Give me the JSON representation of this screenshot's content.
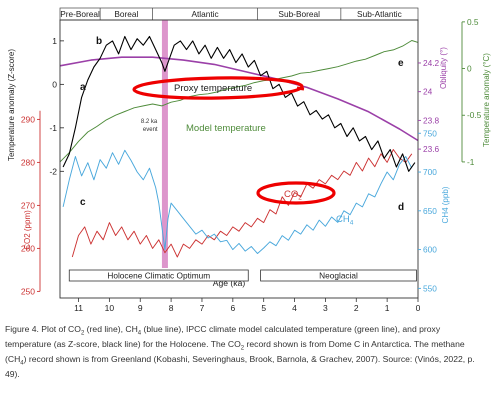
{
  "chart_data": {
    "type": "line",
    "x_axis": {
      "label": "Age (ka)",
      "range": [
        11.6,
        0
      ],
      "ticks": [
        11,
        10,
        9,
        8,
        7,
        6,
        5,
        4,
        3,
        2,
        1,
        0
      ]
    },
    "periods": [
      {
        "name": "Pre-Boreal",
        "start": 11.6,
        "end": 10.3
      },
      {
        "name": "Boreal",
        "start": 10.3,
        "end": 8.6
      },
      {
        "name": "Atlantic",
        "start": 8.6,
        "end": 5.2
      },
      {
        "name": "Sub-Boreal",
        "start": 5.2,
        "end": 2.5
      },
      {
        "name": "Sub-Atlantic",
        "start": 2.5,
        "end": 0
      }
    ],
    "climate_periods": [
      {
        "name": "Holocene Climatic Optimum",
        "start": 11.3,
        "end": 5.5
      },
      {
        "name": "Neoglacial",
        "start": 5.1,
        "end": 0.05
      }
    ],
    "event_8_2ka": {
      "age": 8.2,
      "label_line1": "8.2 ka",
      "label_line2": "event"
    },
    "panel_labels": [
      "a",
      "b",
      "c",
      "d",
      "e"
    ],
    "axes": {
      "zscore": {
        "label": "Temperature anomaly (Z-score)",
        "range": [
          -2.2,
          1.25
        ],
        "ticks": [
          1,
          0,
          -1,
          -2
        ]
      },
      "co2": {
        "label": "CO2 (ppm)",
        "range": [
          248,
          298
        ],
        "ticks": [
          290,
          280,
          270,
          260,
          250
        ]
      },
      "obliquity": {
        "label": "Obliquity (°)",
        "range": [
          23.35,
          24.36
        ],
        "ticks": [
          24.2,
          24,
          23.8,
          23.6
        ]
      },
      "temp_right": {
        "label": "Temperature anomaly (°C)",
        "range": [
          -1.14,
          0.52
        ],
        "ticks": [
          0.5,
          0,
          -0.5,
          -1.0
        ]
      },
      "ch4": {
        "label": "CH4 (ppb)",
        "range": [
          535,
          780
        ],
        "ticks": [
          750,
          700,
          650,
          600,
          550
        ]
      }
    },
    "series": [
      {
        "name": "Proxy temperature",
        "axis": "zscore",
        "color": "#000000",
        "points": [
          [
            11.5,
            -1.9
          ],
          [
            11.3,
            -1.6
          ],
          [
            11.1,
            -1.0
          ],
          [
            10.9,
            -0.3
          ],
          [
            10.7,
            0.1
          ],
          [
            10.5,
            0.4
          ],
          [
            10.3,
            0.6
          ],
          [
            10.1,
            0.9
          ],
          [
            9.9,
            1.0
          ],
          [
            9.7,
            0.7
          ],
          [
            9.5,
            1.1
          ],
          [
            9.3,
            0.8
          ],
          [
            9.1,
            1.05
          ],
          [
            8.9,
            0.9
          ],
          [
            8.7,
            1.1
          ],
          [
            8.5,
            0.8
          ],
          [
            8.3,
            0.5
          ],
          [
            8.2,
            0.3
          ],
          [
            8.1,
            0.5
          ],
          [
            7.9,
            0.9
          ],
          [
            7.7,
            1.0
          ],
          [
            7.5,
            0.8
          ],
          [
            7.3,
            1.0
          ],
          [
            7.1,
            0.7
          ],
          [
            6.9,
            0.9
          ],
          [
            6.7,
            0.6
          ],
          [
            6.5,
            0.85
          ],
          [
            6.3,
            0.6
          ],
          [
            6.1,
            0.8
          ],
          [
            5.9,
            0.5
          ],
          [
            5.7,
            0.7
          ],
          [
            5.5,
            0.4
          ],
          [
            5.3,
            0.55
          ],
          [
            5.1,
            0.2
          ],
          [
            4.9,
            0.3
          ],
          [
            4.7,
            -0.1
          ],
          [
            4.5,
            0.0
          ],
          [
            4.3,
            -0.3
          ],
          [
            4.1,
            -0.2
          ],
          [
            3.9,
            -0.5
          ],
          [
            3.7,
            -0.4
          ],
          [
            3.5,
            -0.7
          ],
          [
            3.3,
            -0.6
          ],
          [
            3.1,
            -0.8
          ],
          [
            2.9,
            -0.7
          ],
          [
            2.7,
            -1.0
          ],
          [
            2.5,
            -0.9
          ],
          [
            2.3,
            -1.2
          ],
          [
            2.1,
            -1.0
          ],
          [
            1.9,
            -1.3
          ],
          [
            1.7,
            -1.2
          ],
          [
            1.5,
            -1.5
          ],
          [
            1.3,
            -1.3
          ],
          [
            1.1,
            -1.7
          ],
          [
            0.9,
            -1.5
          ],
          [
            0.7,
            -1.9
          ],
          [
            0.5,
            -1.6
          ],
          [
            0.3,
            -2.0
          ],
          [
            0.1,
            -1.8
          ]
        ]
      },
      {
        "name": "Model temperature",
        "axis": "temp_right",
        "color": "#4e8b3a",
        "points": [
          [
            11.6,
            -1.0
          ],
          [
            11.3,
            -0.9
          ],
          [
            11.0,
            -0.78
          ],
          [
            10.7,
            -0.68
          ],
          [
            10.4,
            -0.62
          ],
          [
            10.1,
            -0.55
          ],
          [
            9.8,
            -0.5
          ],
          [
            9.5,
            -0.46
          ],
          [
            9.2,
            -0.42
          ],
          [
            8.9,
            -0.4
          ],
          [
            8.6,
            -0.38
          ],
          [
            8.3,
            -0.4
          ],
          [
            8.0,
            -0.36
          ],
          [
            7.7,
            -0.34
          ],
          [
            7.4,
            -0.3
          ],
          [
            7.1,
            -0.28
          ],
          [
            6.8,
            -0.27
          ],
          [
            6.5,
            -0.25
          ],
          [
            6.2,
            -0.22
          ],
          [
            5.9,
            -0.2
          ],
          [
            5.6,
            -0.18
          ],
          [
            5.3,
            -0.15
          ],
          [
            5.0,
            -0.13
          ],
          [
            4.7,
            -0.12
          ],
          [
            4.4,
            -0.1
          ],
          [
            4.1,
            -0.08
          ],
          [
            3.8,
            -0.05
          ],
          [
            3.5,
            -0.04
          ],
          [
            3.2,
            -0.02
          ],
          [
            2.9,
            0.0
          ],
          [
            2.6,
            0.02
          ],
          [
            2.3,
            0.05
          ],
          [
            2.0,
            0.08
          ],
          [
            1.7,
            0.1
          ],
          [
            1.4,
            0.14
          ],
          [
            1.1,
            0.18
          ],
          [
            0.8,
            0.2
          ],
          [
            0.5,
            0.24
          ],
          [
            0.2,
            0.3
          ],
          [
            0.0,
            0.28
          ]
        ]
      },
      {
        "name": "Obliquity",
        "axis": "obliquity",
        "color": "#9b40a8",
        "points": [
          [
            11.6,
            24.18
          ],
          [
            10.6,
            24.22
          ],
          [
            9.6,
            24.24
          ],
          [
            8.6,
            24.24
          ],
          [
            7.6,
            24.22
          ],
          [
            6.6,
            24.19
          ],
          [
            5.6,
            24.14
          ],
          [
            4.6,
            24.09
          ],
          [
            3.6,
            24.03
          ],
          [
            2.6,
            23.95
          ],
          [
            1.6,
            23.86
          ],
          [
            0.6,
            23.74
          ],
          [
            0.0,
            23.66
          ]
        ]
      },
      {
        "name": "CO2",
        "axis": "co2",
        "color": "#cc3333",
        "points": [
          [
            11.2,
            258
          ],
          [
            11.0,
            263
          ],
          [
            10.8,
            265
          ],
          [
            10.6,
            261
          ],
          [
            10.4,
            264
          ],
          [
            10.2,
            262
          ],
          [
            10.0,
            266
          ],
          [
            9.8,
            263
          ],
          [
            9.6,
            265
          ],
          [
            9.4,
            262
          ],
          [
            9.2,
            264
          ],
          [
            9.0,
            261
          ],
          [
            8.8,
            263
          ],
          [
            8.6,
            260
          ],
          [
            8.4,
            262
          ],
          [
            8.2,
            259
          ],
          [
            8.0,
            261
          ],
          [
            7.8,
            258
          ],
          [
            7.6,
            261
          ],
          [
            7.4,
            260
          ],
          [
            7.2,
            262
          ],
          [
            7.0,
            261
          ],
          [
            6.8,
            263
          ],
          [
            6.6,
            262
          ],
          [
            6.4,
            264
          ],
          [
            6.2,
            263
          ],
          [
            6.0,
            265
          ],
          [
            5.8,
            264
          ],
          [
            5.6,
            266
          ],
          [
            5.4,
            265
          ],
          [
            5.2,
            267
          ],
          [
            5.0,
            266
          ],
          [
            4.8,
            269
          ],
          [
            4.6,
            268
          ],
          [
            4.4,
            272
          ],
          [
            4.2,
            270
          ],
          [
            4.0,
            273
          ],
          [
            3.8,
            272
          ],
          [
            3.6,
            275
          ],
          [
            3.4,
            274
          ],
          [
            3.2,
            276
          ],
          [
            3.0,
            275
          ],
          [
            2.8,
            277
          ],
          [
            2.6,
            276
          ],
          [
            2.4,
            278
          ],
          [
            2.2,
            277
          ],
          [
            2.0,
            280
          ],
          [
            1.8,
            278
          ],
          [
            1.6,
            281
          ],
          [
            1.4,
            279
          ],
          [
            1.2,
            282
          ],
          [
            1.0,
            280
          ],
          [
            0.8,
            283
          ],
          [
            0.6,
            281
          ],
          [
            0.4,
            280
          ],
          [
            0.2,
            282
          ]
        ]
      },
      {
        "name": "CH4",
        "axis": "ch4",
        "color": "#4aa8dc",
        "points": [
          [
            11.5,
            655
          ],
          [
            11.3,
            690
          ],
          [
            11.1,
            720
          ],
          [
            10.9,
            695
          ],
          [
            10.7,
            712
          ],
          [
            10.5,
            690
          ],
          [
            10.3,
            716
          ],
          [
            10.1,
            705
          ],
          [
            9.9,
            725
          ],
          [
            9.7,
            710
          ],
          [
            9.5,
            728
          ],
          [
            9.3,
            715
          ],
          [
            9.1,
            700
          ],
          [
            8.9,
            690
          ],
          [
            8.7,
            705
          ],
          [
            8.5,
            680
          ],
          [
            8.4,
            660
          ],
          [
            8.2,
            600
          ],
          [
            8.1,
            640
          ],
          [
            8.0,
            660
          ],
          [
            7.8,
            650
          ],
          [
            7.6,
            640
          ],
          [
            7.4,
            630
          ],
          [
            7.2,
            620
          ],
          [
            7.0,
            625
          ],
          [
            6.8,
            615
          ],
          [
            6.6,
            620
          ],
          [
            6.4,
            610
          ],
          [
            6.2,
            612
          ],
          [
            6.0,
            600
          ],
          [
            5.8,
            608
          ],
          [
            5.6,
            598
          ],
          [
            5.4,
            604
          ],
          [
            5.2,
            595
          ],
          [
            5.0,
            602
          ],
          [
            4.8,
            610
          ],
          [
            4.6,
            605
          ],
          [
            4.4,
            618
          ],
          [
            4.2,
            612
          ],
          [
            4.0,
            625
          ],
          [
            3.8,
            620
          ],
          [
            3.6,
            632
          ],
          [
            3.4,
            625
          ],
          [
            3.2,
            638
          ],
          [
            3.0,
            630
          ],
          [
            2.8,
            642
          ],
          [
            2.6,
            635
          ],
          [
            2.4,
            650
          ],
          [
            2.2,
            645
          ],
          [
            2.0,
            660
          ],
          [
            1.8,
            655
          ],
          [
            1.6,
            672
          ],
          [
            1.4,
            668
          ],
          [
            1.2,
            685
          ],
          [
            1.0,
            700
          ],
          [
            0.8,
            690
          ],
          [
            0.6,
            710
          ],
          [
            0.4,
            720
          ],
          [
            0.2,
            705
          ]
        ]
      }
    ],
    "annotations": [
      {
        "text": "Proxy temperature",
        "color": "#222222"
      },
      {
        "text": "Model temperature",
        "color": "#4e8b3a"
      },
      {
        "text": "CO",
        "subscript": "2",
        "color": "#cc3333"
      },
      {
        "text": "CH",
        "subscript": "4",
        "color": "#4aa8dc"
      }
    ]
  },
  "caption": {
    "parts": [
      "Figure 4. Plot of CO",
      "2",
      " (red line), CH",
      "4",
      " (blue line), IPCC climate model calculated temperature (green line), and proxy temperature (as Z-score, black line) for the Holocene. The CO",
      "2",
      " record shown is from Dome C in Antarctica. The methane (CH",
      "4",
      ") record shown is from Greenland (Kobashi, Severinghaus, Brook, Barnola, & Grachev, 2007). Source: (Vinós, 2022, p. 49)."
    ]
  },
  "colors": {
    "red": "#cc3333",
    "blue": "#4aa8dc",
    "green": "#4e8b3a",
    "purple": "#9b40a8",
    "pink_band": "#d98bc6",
    "highlight": "#ee0000"
  }
}
